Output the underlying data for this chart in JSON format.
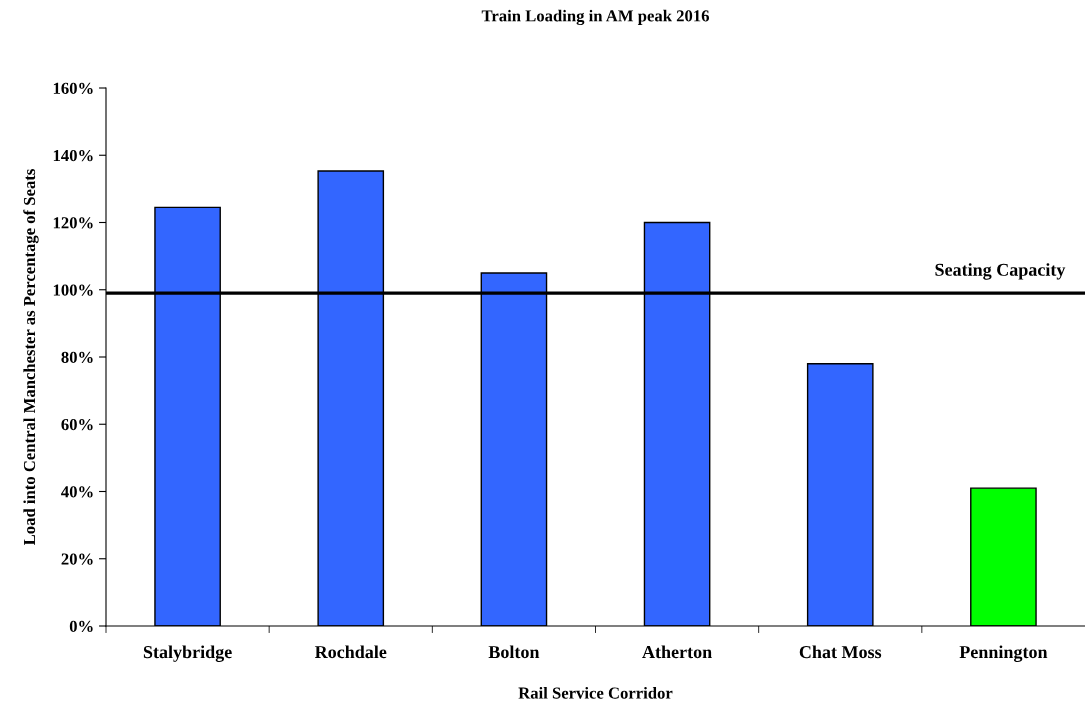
{
  "chart_data": {
    "type": "bar",
    "title": "Train Loading in AM peak 2016",
    "xlabel": "Rail Service Corridor",
    "ylabel": "Load into Central Manchester as Percentage of Seats",
    "categories": [
      "Stalybridge",
      "Rochdale",
      "Bolton",
      "Atherton",
      "Chat Moss",
      "Pennington"
    ],
    "values": [
      124.5,
      135.3,
      105,
      120,
      78,
      41
    ],
    "colors": [
      "#3366ff",
      "#3366ff",
      "#3366ff",
      "#3366ff",
      "#3366ff",
      "#00ff00"
    ],
    "ylim": [
      0,
      160
    ],
    "yticks": [
      {
        "value": 0,
        "label": "0%"
      },
      {
        "value": 20,
        "label": "20%"
      },
      {
        "value": 40,
        "label": "40%"
      },
      {
        "value": 60,
        "label": "60%"
      },
      {
        "value": 80,
        "label": "80%"
      },
      {
        "value": 100,
        "label": "100%"
      },
      {
        "value": 120,
        "label": "120%"
      },
      {
        "value": 140,
        "label": "140%"
      },
      {
        "value": 160,
        "label": "160%"
      }
    ],
    "ref_lines": [
      {
        "axis": "y",
        "value": 99,
        "label": "Seating Capacity",
        "color": "#000000"
      }
    ],
    "grid": false,
    "legend": false
  }
}
